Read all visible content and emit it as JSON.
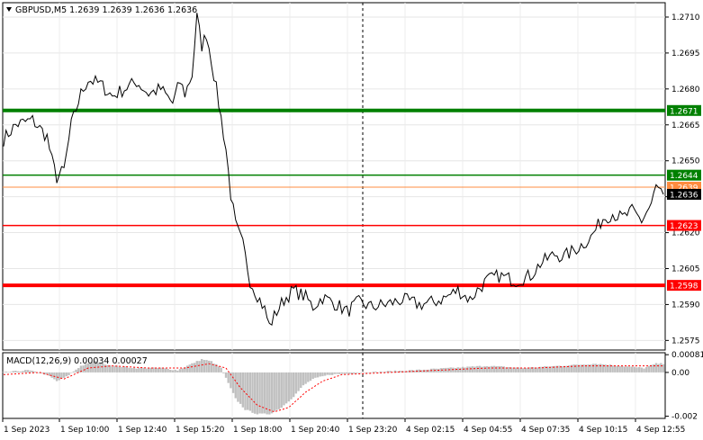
{
  "header": {
    "symbol_label": "GBPUSD,M5  1.2639 1.2639 1.2636 1.2636"
  },
  "chart_data": [
    {
      "type": "line",
      "panel": "price",
      "ylim": [
        1.2571,
        1.2716
      ],
      "yticks": [
        1.2575,
        1.259,
        1.2605,
        1.262,
        1.2635,
        1.265,
        1.2665,
        1.268,
        1.2695,
        1.271
      ],
      "ytick_labels": [
        "1.2575",
        "1.2590",
        "1.2605",
        "1.2620",
        "",
        "1.2650",
        "1.2665",
        "1.2680",
        "1.2695",
        "1.2710"
      ],
      "xlabels": [
        "1 Sep 2023",
        "1 Sep 10:00",
        "1 Sep 12:40",
        "1 Sep 15:20",
        "1 Sep 18:00",
        "1 Sep 20:40",
        "1 Sep 23:20",
        "4 Sep 02:15",
        "4 Sep 04:55",
        "4 Sep 07:35",
        "4 Sep 10:15",
        "4 Sep 12:55"
      ],
      "n_bars": 273,
      "series": [
        {
          "keypoints": [
            [
              0,
              1.2659
            ],
            [
              5,
              1.2665
            ],
            [
              12,
              1.2667
            ],
            [
              18,
              1.266
            ],
            [
              20,
              1.265
            ],
            [
              22,
              1.2643
            ],
            [
              25,
              1.2646
            ],
            [
              28,
              1.2665
            ],
            [
              32,
              1.2678
            ],
            [
              35,
              1.2684
            ],
            [
              40,
              1.2682
            ],
            [
              45,
              1.2677
            ],
            [
              50,
              1.268
            ],
            [
              55,
              1.2683
            ],
            [
              60,
              1.2678
            ],
            [
              65,
              1.268
            ],
            [
              70,
              1.2674
            ],
            [
              73,
              1.2683
            ],
            [
              75,
              1.2678
            ],
            [
              78,
              1.2686
            ],
            [
              80,
              1.271
            ],
            [
              82,
              1.2698
            ],
            [
              84,
              1.2703
            ],
            [
              86,
              1.2692
            ],
            [
              88,
              1.268
            ],
            [
              90,
              1.2668
            ],
            [
              92,
              1.2655
            ],
            [
              94,
              1.2636
            ],
            [
              96,
              1.2623
            ],
            [
              99,
              1.2615
            ],
            [
              102,
              1.26
            ],
            [
              105,
              1.2594
            ],
            [
              108,
              1.2588
            ],
            [
              110,
              1.2581
            ],
            [
              113,
              1.2587
            ],
            [
              116,
              1.2592
            ],
            [
              120,
              1.2596
            ],
            [
              125,
              1.2593
            ],
            [
              128,
              1.2589
            ],
            [
              132,
              1.2593
            ],
            [
              138,
              1.259
            ],
            [
              142,
              1.2587
            ],
            [
              147,
              1.2591
            ],
            [
              152,
              1.2589
            ],
            [
              158,
              1.259
            ],
            [
              165,
              1.2592
            ],
            [
              172,
              1.259
            ],
            [
              178,
              1.2591
            ],
            [
              183,
              1.2593
            ],
            [
              188,
              1.2596
            ],
            [
              193,
              1.2592
            ],
            [
              196,
              1.2596
            ],
            [
              200,
              1.26
            ],
            [
              205,
              1.2602
            ],
            [
              212,
              1.26
            ],
            [
              218,
              1.2602
            ],
            [
              222,
              1.2607
            ],
            [
              228,
              1.2611
            ],
            [
              232,
              1.261
            ],
            [
              238,
              1.2614
            ],
            [
              243,
              1.2618
            ],
            [
              248,
              1.2626
            ],
            [
              252,
              1.2628
            ],
            [
              256,
              1.2626
            ],
            [
              260,
              1.2629
            ],
            [
              264,
              1.2625
            ],
            [
              268,
              1.2632
            ],
            [
              270,
              1.2639
            ],
            [
              273,
              1.2636
            ]
          ]
        }
      ],
      "levels": [
        {
          "value": 1.2671,
          "label": "1.2671",
          "color": "#008000"
        },
        {
          "value": 1.2644,
          "label": "1.2644",
          "color": "#008000"
        },
        {
          "value": 1.2639,
          "label": "1.2639",
          "color": "#ff8c40"
        },
        {
          "value": 1.2636,
          "label": "1.2636",
          "color": "#000000"
        },
        {
          "value": 1.2623,
          "label": "1.2623",
          "color": "#ff0000"
        },
        {
          "value": 1.2598,
          "label": "1.2598",
          "color": "#ff0000"
        }
      ]
    },
    {
      "type": "bar",
      "panel": "macd",
      "title": "MACD(12,26,9) 0.00034 0.00027",
      "ylim": [
        -0.0021,
        0.0009
      ],
      "ytick_labels": [
        "0.00081",
        "0.00",
        "-0.002"
      ],
      "yticks": [
        0.00081,
        0.0,
        -0.002
      ],
      "hist_keypoints": [
        [
          0,
          0.0
        ],
        [
          10,
          0.0001
        ],
        [
          18,
          -0.0001
        ],
        [
          22,
          -0.0004
        ],
        [
          26,
          -0.0002
        ],
        [
          32,
          0.0003
        ],
        [
          38,
          0.0005
        ],
        [
          45,
          0.0003
        ],
        [
          55,
          0.0002
        ],
        [
          65,
          0.0002
        ],
        [
          72,
          0.0001
        ],
        [
          78,
          0.0004
        ],
        [
          82,
          0.0006
        ],
        [
          86,
          0.0005
        ],
        [
          90,
          0.0002
        ],
        [
          93,
          -0.0005
        ],
        [
          96,
          -0.0012
        ],
        [
          100,
          -0.0017
        ],
        [
          105,
          -0.0019
        ],
        [
          110,
          -0.0019
        ],
        [
          115,
          -0.0016
        ],
        [
          120,
          -0.0011
        ],
        [
          124,
          -0.0006
        ],
        [
          128,
          -0.0003
        ],
        [
          135,
          -0.0001
        ],
        [
          150,
          0.0
        ],
        [
          170,
          0.0001
        ],
        [
          185,
          0.0002
        ],
        [
          200,
          0.0003
        ],
        [
          215,
          0.0002
        ],
        [
          230,
          0.0003
        ],
        [
          245,
          0.0004
        ],
        [
          255,
          0.0003
        ],
        [
          265,
          0.0002
        ],
        [
          270,
          0.0004
        ],
        [
          273,
          0.0004
        ]
      ],
      "signal_keypoints": [
        [
          0,
          -0.0001
        ],
        [
          15,
          0.0
        ],
        [
          25,
          -0.0003
        ],
        [
          35,
          0.0002
        ],
        [
          45,
          0.0003
        ],
        [
          60,
          0.0002
        ],
        [
          75,
          0.0002
        ],
        [
          85,
          0.0004
        ],
        [
          92,
          0.0002
        ],
        [
          98,
          -0.0007
        ],
        [
          105,
          -0.0015
        ],
        [
          112,
          -0.0018
        ],
        [
          118,
          -0.0016
        ],
        [
          125,
          -0.0009
        ],
        [
          132,
          -0.0004
        ],
        [
          140,
          -0.0001
        ],
        [
          160,
          0.0
        ],
        [
          180,
          0.0001
        ],
        [
          200,
          0.0002
        ],
        [
          220,
          0.0002
        ],
        [
          240,
          0.0003
        ],
        [
          260,
          0.0003
        ],
        [
          273,
          0.0003
        ]
      ],
      "hist_color": "#c0c0c0",
      "signal_color": "#ff0000"
    }
  ]
}
